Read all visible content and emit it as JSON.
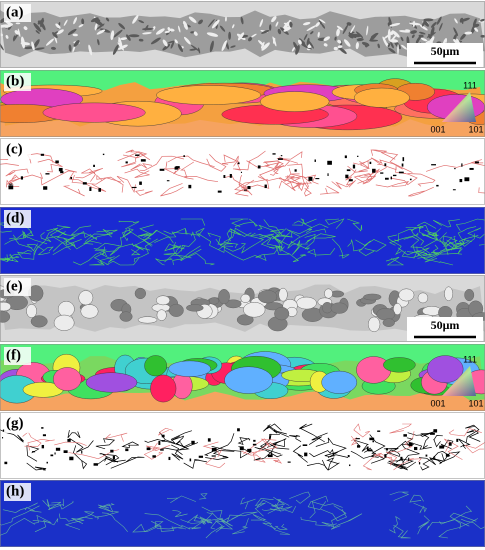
{
  "panels": [
    {
      "label": "(a)",
      "scale_bar": "50μm"
    },
    {
      "label": "(b)",
      "legend": {
        "top": "111",
        "left": "001",
        "right": "101"
      }
    },
    {
      "label": "(c)"
    },
    {
      "label": "(d)"
    },
    {
      "label": "(e)",
      "scale_bar": "50μm"
    },
    {
      "label": "(f)",
      "legend": {
        "top": "111",
        "left": "001",
        "right": "101"
      }
    },
    {
      "label": "(g)"
    },
    {
      "label": "(h)"
    }
  ]
}
